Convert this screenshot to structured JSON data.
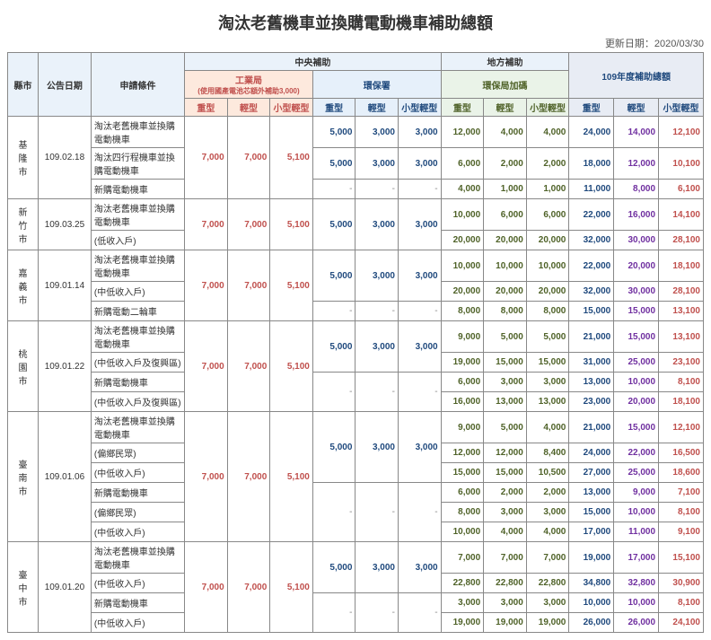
{
  "title": "淘汰老舊機車並換購電動機車補助總額",
  "update_label": "更新日期：2020/03/30",
  "hdr": {
    "city": "縣市",
    "date": "公告日期",
    "cond": "申請條件",
    "central": "中央補助",
    "local": "地方補助",
    "total": "109年度補助總額",
    "gong": "工業局",
    "gong_sub": "(使用國產電池芯額外補助3,000)",
    "epa": "環保署",
    "local_sub": "環保局加碼",
    "heavy": "重型",
    "light": "輕型",
    "small": "小型輕型"
  },
  "rows": [
    {
      "city": "基隆市",
      "date": "109.02.18",
      "conds": [
        {
          "t": "淘汰老舊機車並換購電動機車",
          "g": [
            7000,
            7000,
            5100
          ],
          "e": [
            5000,
            3000,
            3000
          ],
          "l": [
            12000,
            4000,
            4000
          ],
          "s": [
            24000,
            14000,
            12100
          ]
        },
        {
          "t": "淘汰四行程機車並換購電動機車",
          "g": "merge",
          "e": [
            5000,
            3000,
            3000
          ],
          "l": [
            6000,
            2000,
            2000
          ],
          "s": [
            18000,
            12000,
            10100
          ]
        },
        {
          "t": "新購電動機車",
          "g": "merge",
          "e": [
            "-",
            "-",
            "-"
          ],
          "l": [
            4000,
            1000,
            1000
          ],
          "s": [
            11000,
            8000,
            6100
          ]
        }
      ]
    },
    {
      "city": "新竹市",
      "date": "109.03.25",
      "conds": [
        {
          "t": "淘汰老舊機車並換購電動機車",
          "g": [
            7000,
            7000,
            5100
          ],
          "e": [
            5000,
            3000,
            3000
          ],
          "l": [
            10000,
            6000,
            6000
          ],
          "s": [
            22000,
            16000,
            14100
          ]
        },
        {
          "t": "(低收入戶)",
          "g": "merge",
          "e": "merge",
          "l": [
            20000,
            20000,
            20000
          ],
          "s": [
            32000,
            30000,
            28100
          ]
        }
      ]
    },
    {
      "city": "嘉義市",
      "date": "109.01.14",
      "conds": [
        {
          "t": "淘汰老舊機車並換購電動機車",
          "g": [
            7000,
            7000,
            5100
          ],
          "e": [
            5000,
            3000,
            3000
          ],
          "l": [
            10000,
            10000,
            10000
          ],
          "s": [
            22000,
            20000,
            18100
          ]
        },
        {
          "t": "(中低收入戶)",
          "g": "merge",
          "e": "merge",
          "l": [
            20000,
            20000,
            20000
          ],
          "s": [
            32000,
            30000,
            28100
          ]
        },
        {
          "t": "新購電動二輪車",
          "g": "merge",
          "e": [
            "-",
            "-",
            "-"
          ],
          "l": [
            8000,
            8000,
            8000
          ],
          "s": [
            15000,
            15000,
            13100
          ]
        }
      ]
    },
    {
      "city": "桃園市",
      "date": "109.01.22",
      "conds": [
        {
          "t": "淘汰老舊機車並換購電動機車",
          "g": [
            7000,
            7000,
            5100
          ],
          "e": [
            5000,
            3000,
            3000
          ],
          "l": [
            9000,
            5000,
            5000
          ],
          "s": [
            21000,
            15000,
            13100
          ]
        },
        {
          "t": "(中低收入戶及復興區)",
          "g": "merge",
          "e": "merge",
          "l": [
            19000,
            15000,
            15000
          ],
          "s": [
            31000,
            25000,
            23100
          ]
        },
        {
          "t": "新購電動機車",
          "g": "merge",
          "e": [
            "-",
            "-",
            "-"
          ],
          "l": [
            6000,
            3000,
            3000
          ],
          "s": [
            13000,
            10000,
            8100
          ]
        },
        {
          "t": "(中低收入戶及復興區)",
          "g": "merge",
          "e": "merge",
          "l": [
            16000,
            13000,
            13000
          ],
          "s": [
            23000,
            20000,
            18100
          ]
        }
      ]
    },
    {
      "city": "臺南市",
      "date": "109.01.06",
      "conds": [
        {
          "t": "淘汰老舊機車並換購電動機車",
          "g": [
            7000,
            7000,
            5100
          ],
          "e": [
            5000,
            3000,
            3000
          ],
          "l": [
            9000,
            5000,
            4000
          ],
          "s": [
            21000,
            15000,
            12100
          ]
        },
        {
          "t": "(偏鄉民眾)",
          "g": "merge",
          "e": "merge",
          "l": [
            12000,
            12000,
            8400
          ],
          "s": [
            24000,
            22000,
            16500
          ]
        },
        {
          "t": "(中低收入戶)",
          "g": "merge",
          "e": "merge",
          "l": [
            15000,
            15000,
            10500
          ],
          "s": [
            27000,
            25000,
            18600
          ]
        },
        {
          "t": "新購電動機車",
          "g": "merge",
          "e": [
            "-",
            "-",
            "-"
          ],
          "l": [
            6000,
            2000,
            2000
          ],
          "s": [
            13000,
            9000,
            7100
          ]
        },
        {
          "t": "(偏鄉民眾)",
          "g": "merge",
          "e": "merge",
          "l": [
            8000,
            3000,
            3000
          ],
          "s": [
            15000,
            10000,
            8100
          ]
        },
        {
          "t": "(中低收入戶)",
          "g": "merge",
          "e": "merge",
          "l": [
            10000,
            4000,
            4000
          ],
          "s": [
            17000,
            11000,
            9100
          ]
        }
      ]
    },
    {
      "city": "臺中市",
      "date": "109.01.20",
      "conds": [
        {
          "t": "淘汰老舊機車並換購電動機車",
          "g": [
            7000,
            7000,
            5100
          ],
          "e": [
            5000,
            3000,
            3000
          ],
          "l": [
            7000,
            7000,
            7000
          ],
          "s": [
            19000,
            17000,
            15100
          ]
        },
        {
          "t": "(中低收入戶)",
          "g": "merge",
          "e": "merge",
          "l": [
            22800,
            22800,
            22800
          ],
          "s": [
            34800,
            32800,
            30900
          ]
        },
        {
          "t": "新購電動機車",
          "g": "merge",
          "e": [
            "-",
            "-",
            "-"
          ],
          "l": [
            3000,
            3000,
            3000
          ],
          "s": [
            10000,
            10000,
            8100
          ]
        },
        {
          "t": "(中低收入戶)",
          "g": "merge",
          "e": "merge",
          "l": [
            19000,
            19000,
            19000
          ],
          "s": [
            26000,
            26000,
            24100
          ]
        }
      ]
    }
  ]
}
